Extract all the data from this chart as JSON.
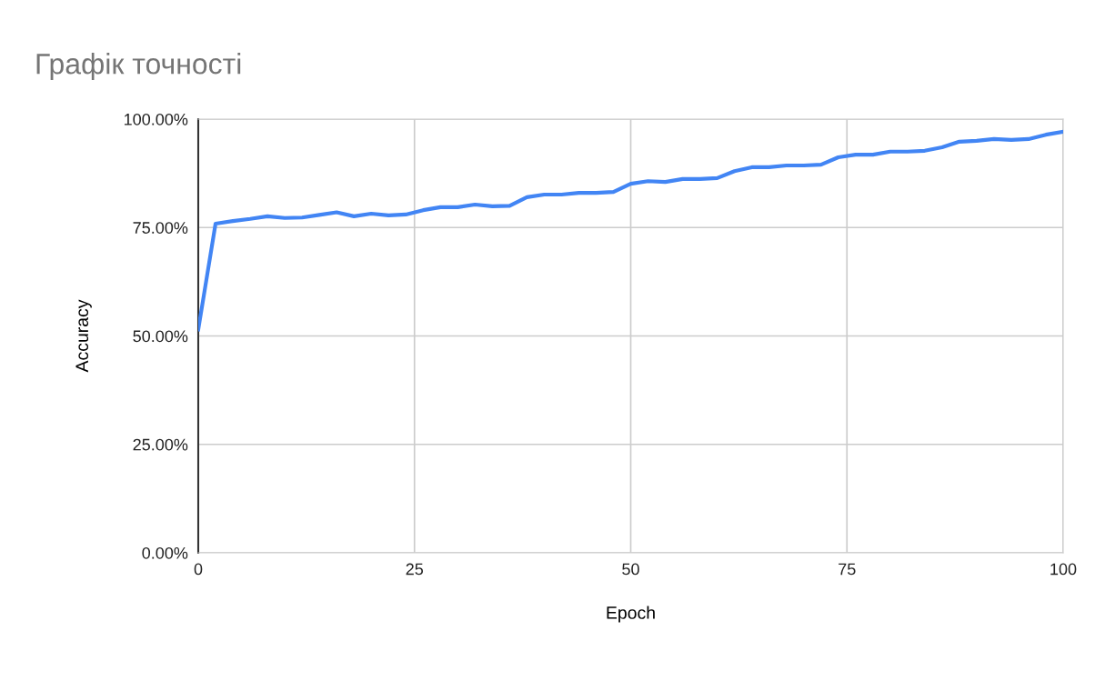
{
  "chart_data": {
    "type": "line",
    "title": "Графік точності",
    "xlabel": "Epoch",
    "ylabel": "Accuracy",
    "x": [
      0,
      2,
      4,
      6,
      8,
      10,
      12,
      14,
      16,
      18,
      20,
      22,
      24,
      26,
      28,
      30,
      32,
      34,
      36,
      38,
      40,
      42,
      44,
      46,
      48,
      50,
      52,
      54,
      56,
      58,
      60,
      62,
      64,
      66,
      68,
      70,
      72,
      74,
      76,
      78,
      80,
      82,
      84,
      86,
      88,
      90,
      92,
      94,
      96,
      98,
      100
    ],
    "series": [
      {
        "color": "#4285f4",
        "values": [
          51.5,
          75.9,
          76.5,
          77,
          77.6,
          77.2,
          77.3,
          77.9,
          78.5,
          77.6,
          78.2,
          77.8,
          78,
          79,
          79.7,
          79.7,
          80.3,
          79.9,
          80,
          82,
          82.6,
          82.6,
          83,
          83,
          83.2,
          85.1,
          85.7,
          85.5,
          86.2,
          86.2,
          86.4,
          88,
          88.9,
          88.9,
          89.3,
          89.3,
          89.5,
          91.2,
          91.8,
          91.8,
          92.5,
          92.5,
          92.7,
          93.5,
          94.8,
          95,
          95.4,
          95.2,
          95.4,
          96.4,
          97.1
        ]
      }
    ],
    "xlim": [
      0,
      100
    ],
    "xticks": [
      0,
      25,
      50,
      75,
      100
    ],
    "ylim": [
      0,
      100
    ],
    "yticks": [
      {
        "value": 0,
        "label": "0.00%"
      },
      {
        "value": 25,
        "label": "25.00%"
      },
      {
        "value": 50,
        "label": "50.00%"
      },
      {
        "value": 75,
        "label": "75.00%"
      },
      {
        "value": 100,
        "label": "100.00%"
      }
    ],
    "grid": true,
    "legend": false,
    "marker": "none",
    "line_style": "solid"
  }
}
